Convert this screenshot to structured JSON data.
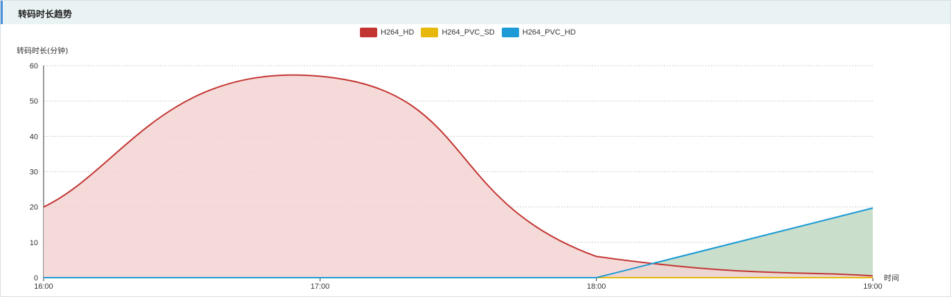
{
  "panel": {
    "title": "转码时长趋势"
  },
  "colors": {
    "H264_HD": "#c23531",
    "H264_PVC_SD": "#e5b80b",
    "H264_PVC_HD": "#1e9bd7",
    "H264_HD_area": "#f3d3d4",
    "H264_PVC_HD_area": "#c9dfcb",
    "grid": "#cccccc",
    "axis": "#333333"
  },
  "legend": [
    {
      "name": "H264_HD",
      "color": "#c23531"
    },
    {
      "name": "H264_PVC_SD",
      "color": "#e5b80b"
    },
    {
      "name": "H264_PVC_HD",
      "color": "#1e9bd7"
    }
  ],
  "chart_data": {
    "type": "area",
    "x": [
      "16:00",
      "17:00",
      "18:00",
      "19:00"
    ],
    "xlabel": "时间",
    "ylabel": "转码时长(分钟)",
    "ylim": [
      0,
      60
    ],
    "yticks": [
      0,
      10,
      20,
      30,
      40,
      50,
      60
    ],
    "grid": true,
    "legend_position": "top-center",
    "series": [
      {
        "name": "H264_HD",
        "values": [
          20,
          57,
          6,
          0.5
        ]
      },
      {
        "name": "H264_PVC_SD",
        "values": [
          0,
          0,
          0,
          0
        ]
      },
      {
        "name": "H264_PVC_HD",
        "values": [
          0,
          0,
          0,
          19.7
        ]
      }
    ]
  }
}
